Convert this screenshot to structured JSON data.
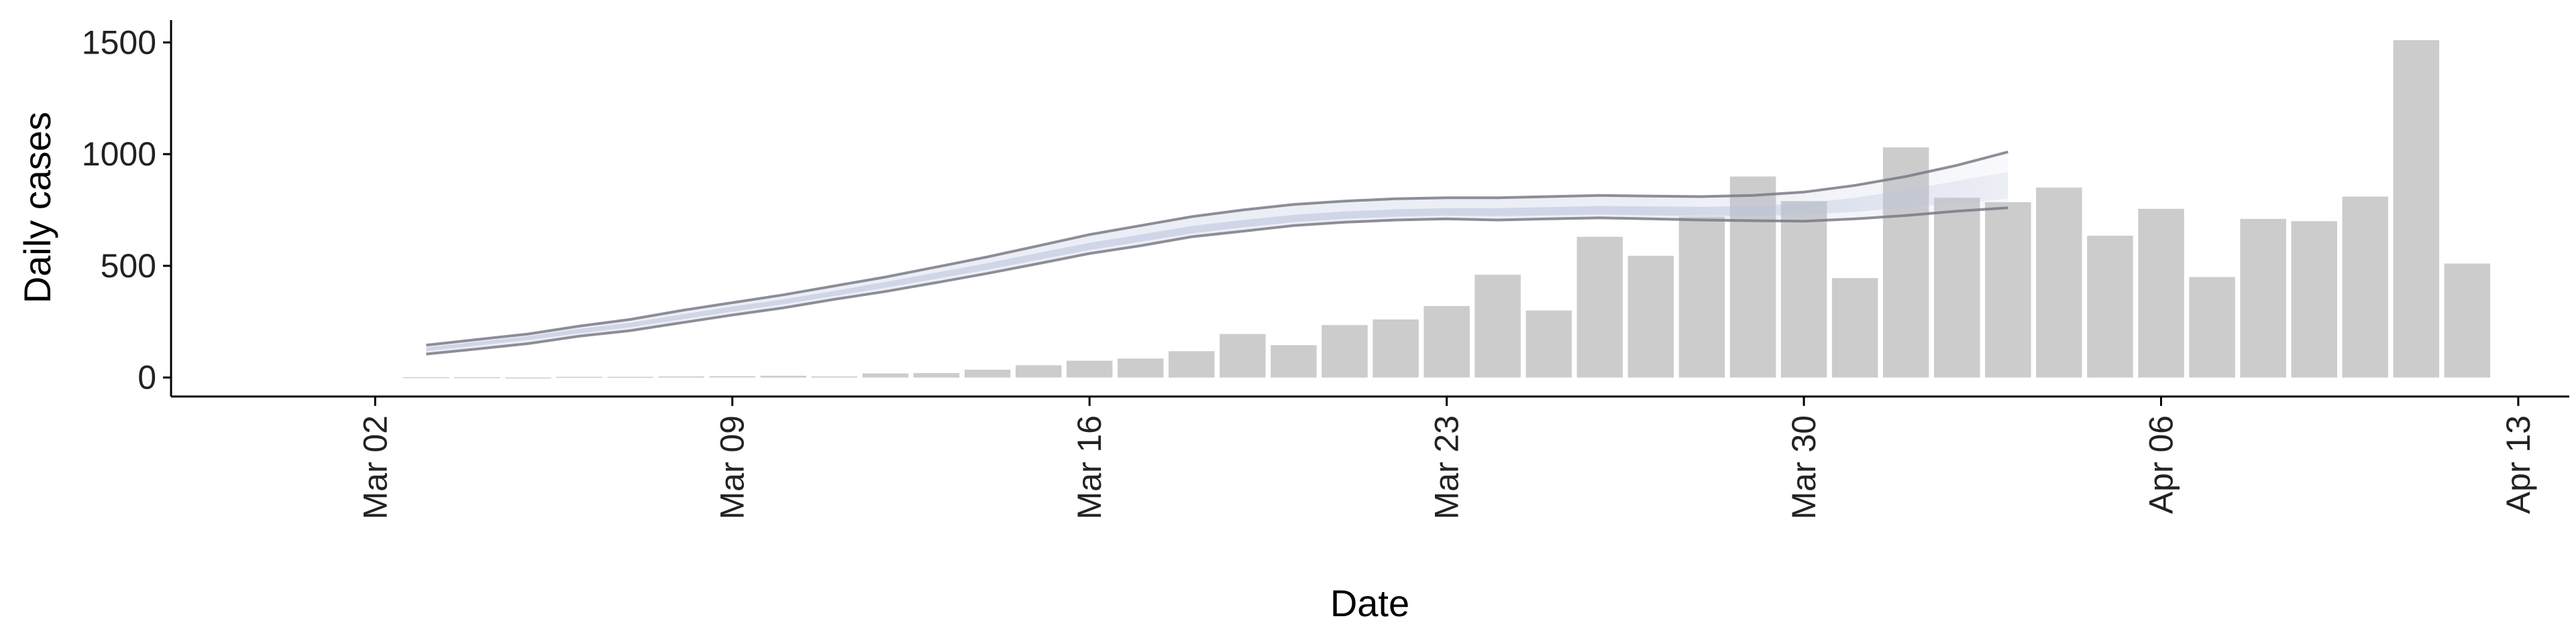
{
  "chart_data": {
    "type": "bar",
    "xlabel": "Date",
    "ylabel": "Daily cases",
    "ylim": [
      -85,
      1600
    ],
    "x_range": [
      "2020-02-27",
      "2020-04-14"
    ],
    "y_ticks": [
      0,
      500,
      1000,
      1500
    ],
    "x_ticks": [
      {
        "date": "2020-03-02",
        "label": "Mar 02"
      },
      {
        "date": "2020-03-09",
        "label": "Mar 09"
      },
      {
        "date": "2020-03-16",
        "label": "Mar 16"
      },
      {
        "date": "2020-03-23",
        "label": "Mar 23"
      },
      {
        "date": "2020-03-30",
        "label": "Mar 30"
      },
      {
        "date": "2020-04-06",
        "label": "Apr 06"
      },
      {
        "date": "2020-04-13",
        "label": "Apr 13"
      }
    ],
    "bars": {
      "color": "#cccccc",
      "dates": [
        "2020-03-03",
        "2020-03-04",
        "2020-03-05",
        "2020-03-06",
        "2020-03-07",
        "2020-03-08",
        "2020-03-09",
        "2020-03-10",
        "2020-03-11",
        "2020-03-12",
        "2020-03-13",
        "2020-03-14",
        "2020-03-15",
        "2020-03-16",
        "2020-03-17",
        "2020-03-18",
        "2020-03-19",
        "2020-03-20",
        "2020-03-21",
        "2020-03-22",
        "2020-03-23",
        "2020-03-24",
        "2020-03-25",
        "2020-03-26",
        "2020-03-27",
        "2020-03-28",
        "2020-03-29",
        "2020-03-30",
        "2020-03-31",
        "2020-04-01",
        "2020-04-02",
        "2020-04-03",
        "2020-04-04",
        "2020-04-05",
        "2020-04-06",
        "2020-04-07",
        "2020-04-08",
        "2020-04-09",
        "2020-04-10",
        "2020-04-11",
        "2020-04-12"
      ],
      "values": [
        2,
        2,
        0,
        3,
        3,
        5,
        6,
        8,
        5,
        18,
        20,
        35,
        55,
        75,
        85,
        118,
        195,
        145,
        235,
        260,
        320,
        460,
        300,
        630,
        545,
        720,
        900,
        790,
        445,
        1030,
        805,
        785,
        850,
        635,
        755,
        450,
        710,
        700,
        810,
        1510,
        510
      ]
    },
    "estimate": {
      "line_color": "#7a7a86",
      "band_color": "#b9c2dc",
      "dates": [
        "2020-03-03",
        "2020-03-04",
        "2020-03-05",
        "2020-03-06",
        "2020-03-07",
        "2020-03-08",
        "2020-03-09",
        "2020-03-10",
        "2020-03-11",
        "2020-03-12",
        "2020-03-13",
        "2020-03-14",
        "2020-03-15",
        "2020-03-16",
        "2020-03-17",
        "2020-03-18",
        "2020-03-19",
        "2020-03-20",
        "2020-03-21",
        "2020-03-22",
        "2020-03-23",
        "2020-03-24",
        "2020-03-25",
        "2020-03-26",
        "2020-03-27",
        "2020-03-28",
        "2020-03-29",
        "2020-03-30",
        "2020-03-31",
        "2020-04-01",
        "2020-04-02",
        "2020-04-03"
      ],
      "upper": [
        145,
        170,
        195,
        230,
        260,
        300,
        335,
        370,
        410,
        450,
        495,
        540,
        590,
        640,
        680,
        720,
        750,
        775,
        790,
        800,
        805,
        805,
        810,
        815,
        812,
        810,
        815,
        830,
        860,
        900,
        950,
        1010
      ],
      "inner_upper": [
        135,
        160,
        185,
        218,
        245,
        282,
        318,
        350,
        388,
        428,
        470,
        512,
        558,
        603,
        640,
        678,
        705,
        728,
        743,
        753,
        758,
        758,
        763,
        768,
        766,
        764,
        768,
        780,
        805,
        840,
        880,
        920
      ],
      "inner_lower": [
        118,
        143,
        168,
        198,
        225,
        260,
        295,
        328,
        365,
        402,
        442,
        483,
        527,
        571,
        608,
        645,
        672,
        695,
        710,
        720,
        725,
        722,
        726,
        730,
        726,
        723,
        724,
        728,
        742,
        760,
        780,
        800
      ],
      "lower": [
        105,
        128,
        152,
        185,
        210,
        245,
        280,
        312,
        350,
        385,
        425,
        466,
        510,
        555,
        590,
        630,
        655,
        680,
        695,
        705,
        710,
        705,
        710,
        715,
        710,
        705,
        702,
        700,
        710,
        725,
        745,
        760
      ],
      "fade_from": "2020-03-27"
    }
  }
}
